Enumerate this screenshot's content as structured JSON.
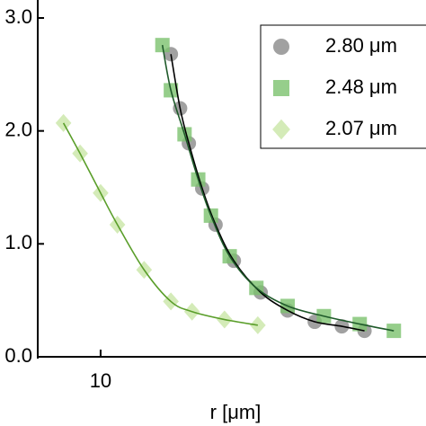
{
  "chart_data": {
    "type": "scatter",
    "x_label": "r [μm]",
    "xscale": "log",
    "xlim": [
      7,
      65
    ],
    "xticks": [
      10
    ],
    "ylim": [
      0,
      3
    ],
    "yticks": [
      {
        "value": 0,
        "label": "0.0"
      },
      {
        "value": 1,
        "label": "1.0"
      },
      {
        "value": 2,
        "label": "2.0"
      },
      {
        "value": 3,
        "label": "3.0"
      }
    ],
    "legend": "upper right",
    "series": [
      {
        "name": "2.80 μm",
        "marker": "circle",
        "color": "#8a8a8a",
        "line_color": "#000000",
        "x": [
          14.9,
          15.7,
          16.5,
          17.8,
          19.2,
          21.3,
          24.8,
          28.9,
          33.7,
          39.3,
          44.7
        ],
        "values": [
          2.68,
          2.2,
          1.89,
          1.49,
          1.17,
          0.85,
          0.57,
          0.41,
          0.31,
          0.27,
          0.23
        ]
      },
      {
        "name": "2.48 μm",
        "marker": "square",
        "color": "#7cc26e",
        "line_color": "#1f5a2a",
        "x": [
          14.2,
          14.9,
          16.1,
          17.4,
          18.7,
          20.8,
          24.2,
          28.9,
          35.5,
          43.5,
          52.8
        ],
        "values": [
          2.76,
          2.36,
          1.97,
          1.57,
          1.25,
          0.89,
          0.61,
          0.45,
          0.36,
          0.29,
          0.23
        ]
      },
      {
        "name": "2.07 μm",
        "marker": "diamond",
        "color": "#c9e6a6",
        "line_color": "#5a9e2a",
        "x": [
          8.1,
          8.9,
          10,
          11,
          12.8,
          14.9,
          16.8,
          20.2,
          24.4
        ],
        "values": [
          2.07,
          1.8,
          1.45,
          1.17,
          0.77,
          0.49,
          0.4,
          0.33,
          0.28
        ]
      }
    ]
  }
}
